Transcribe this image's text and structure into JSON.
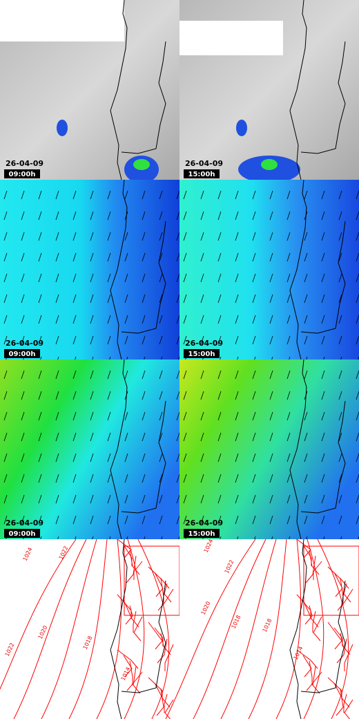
{
  "panels": [
    {
      "date": "26-04-09",
      "time": "09:00h"
    },
    {
      "date": "26-04-09",
      "time": "15:00h"
    },
    {
      "date": "26-04-09",
      "time": "09:00h"
    },
    {
      "date": "26-04-09",
      "time": "15:00h"
    },
    {
      "date": "26-04-09",
      "time": "09:00h"
    },
    {
      "date": "26-04-09",
      "time": "15:00h"
    }
  ],
  "isobars": [
    {
      "labels": [
        "1024",
        "1022",
        "1022",
        "1020",
        "1018",
        "1014"
      ]
    },
    {
      "labels": [
        "1024",
        "1022",
        "1020",
        "1018",
        "1018",
        "1014"
      ]
    }
  ]
}
